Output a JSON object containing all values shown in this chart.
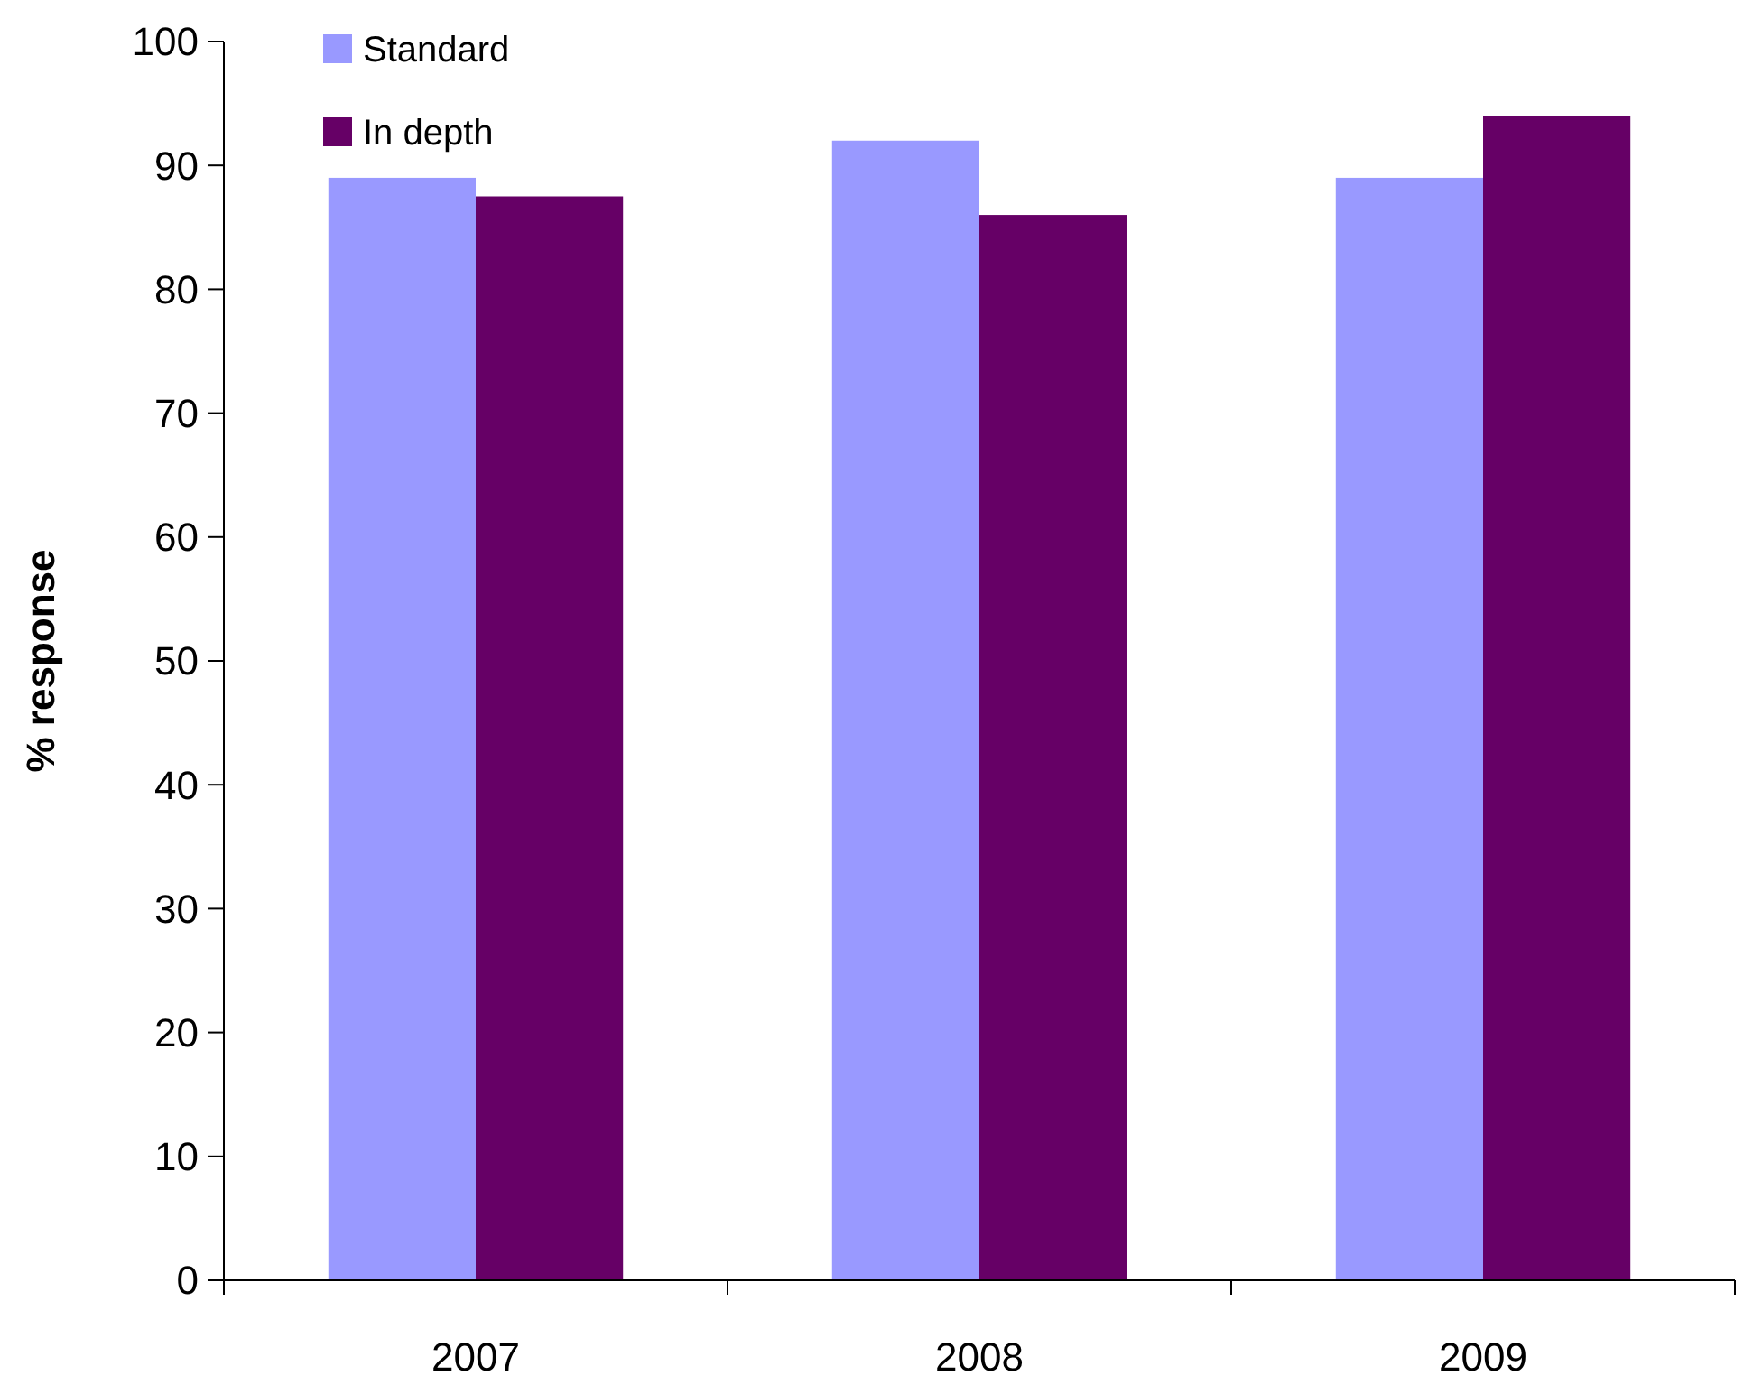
{
  "chart_data": {
    "type": "bar",
    "ylabel": "% response",
    "categories": [
      "2007",
      "2008",
      "2009"
    ],
    "series": [
      {
        "name": "Standard",
        "color": "#9999ff",
        "values": [
          89,
          92,
          89
        ]
      },
      {
        "name": "In depth",
        "color": "#660066",
        "values": [
          87.5,
          86,
          94
        ]
      }
    ],
    "ylim": [
      0,
      100
    ],
    "yticks": [
      0,
      10,
      20,
      30,
      40,
      50,
      60,
      70,
      80,
      90,
      100
    ],
    "grid": false,
    "legend": "top left"
  }
}
